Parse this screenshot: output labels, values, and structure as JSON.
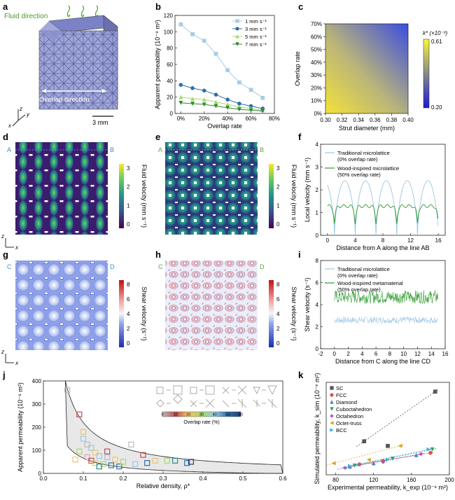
{
  "panel_labels": [
    "a",
    "b",
    "c",
    "d",
    "e",
    "f",
    "g",
    "h",
    "i",
    "j",
    "k"
  ],
  "panel_a": {
    "fluid_direction": "Fluid direction",
    "overlap_direction": "Overlap direction",
    "axis_z": "z",
    "axis_y": "y",
    "axis_x": "x",
    "scale_bar": "3 mm"
  },
  "panel_b_chart": {
    "type": "line",
    "x": [
      0,
      10,
      20,
      30,
      40,
      50,
      60,
      70
    ],
    "x_tick_labels": [
      "0%",
      "20%",
      "40%",
      "60%",
      "80%"
    ],
    "x_ticks": [
      0,
      20,
      40,
      60,
      80
    ],
    "y_ticks": [
      0,
      20,
      40,
      60,
      80,
      100,
      120
    ],
    "xlim": [
      -5,
      80
    ],
    "ylim": [
      0,
      120
    ],
    "xlabel": "Overlap rate",
    "ylabel": "Apparent permeability (10⁻⁹ m²)",
    "legend_position": "top-right",
    "series": [
      {
        "name": "1 mm s⁻¹",
        "color": "#a8cce4",
        "marker": "square",
        "values": [
          109,
          97,
          89,
          73,
          53,
          38,
          29,
          19
        ]
      },
      {
        "name": "3 mm s⁻¹",
        "color": "#2e6fa8",
        "marker": "circle",
        "values": [
          35,
          31,
          28,
          23,
          17,
          12,
          9,
          6
        ]
      },
      {
        "name": "5 mm s⁻¹",
        "color": "#a6d96a",
        "marker": "triangle-up",
        "values": [
          20,
          18,
          17,
          14,
          11,
          8,
          6,
          4
        ]
      },
      {
        "name": "7 mm s⁻¹",
        "color": "#2e8b2e",
        "marker": "triangle-down",
        "values": [
          13,
          12,
          11,
          9,
          7,
          5,
          4,
          3
        ]
      }
    ]
  },
  "panel_c_chart": {
    "type": "heatmap",
    "xlabel": "Strut diameter (mm)",
    "ylabel": "Overlap rate",
    "x_ticks": [
      "0.30",
      "0.32",
      "0.34",
      "0.36",
      "0.38",
      "0.40"
    ],
    "y_ticks": [
      "0%",
      "10%",
      "20%",
      "30%",
      "40%",
      "50%",
      "60%",
      "70%"
    ],
    "colorbar_title": "k* (×10⁻³)",
    "colorbar_max": "0.61",
    "colorbar_min": "0.20"
  },
  "panel_d": {
    "label_start": "A",
    "label_end": "B",
    "colorbar_title": "Fluid velocity (mm s⁻¹)",
    "colorbar_ticks": [
      "3",
      "2",
      "1",
      "0"
    ],
    "axis_z": "z",
    "axis_x": "x"
  },
  "panel_e": {
    "label_start": "A",
    "label_end": "B",
    "colorbar_title": "Fluid velocity (mm s⁻¹)",
    "colorbar_ticks": [
      "3",
      "2",
      "1",
      "0"
    ]
  },
  "panel_f_chart": {
    "type": "line",
    "xlabel": "Distance from A along the line AB",
    "ylabel": "Local velocity (mm s⁻¹)",
    "x_ticks": [
      0,
      4,
      8,
      12,
      16
    ],
    "y_ticks": [
      0,
      1,
      2,
      3,
      4
    ],
    "xlim": [
      -1,
      17
    ],
    "ylim": [
      0,
      4
    ],
    "legend_position": "top-left",
    "series": [
      {
        "name": "Traditional microlattice (0% overlap rate)",
        "color": "#9cc7e3",
        "peak": 2.4,
        "peaks_at": [
          1.0,
          4.0,
          7.0,
          10.0,
          13.0,
          16.0
        ]
      },
      {
        "name": "Wood-inspired microlattice (50% overlap rate)",
        "color": "#2e9a2e",
        "peak": 1.35,
        "peaks_at": [
          1.0,
          4.0,
          7.0,
          10.0,
          13.0,
          16.0
        ]
      }
    ],
    "legend_lines": [
      {
        "line1": "Traditional microlattice",
        "line2": "(0% overlap rate)"
      },
      {
        "line1": "Wood-inspired microlattice",
        "line2": "(50% overlap rate)"
      }
    ]
  },
  "panel_g": {
    "label_start": "C",
    "label_end": "D",
    "colorbar_title": "Shear velocity (s⁻¹)",
    "colorbar_ticks": [
      "8",
      "6",
      "4",
      "2",
      "0"
    ],
    "axis_z": "z",
    "axis_x": "x"
  },
  "panel_h": {
    "label_start": "C",
    "label_end": "D",
    "colorbar_title": "Shear velocity (s⁻¹)",
    "colorbar_ticks": [
      "8",
      "6",
      "4",
      "2",
      "0"
    ]
  },
  "panel_i_chart": {
    "type": "line",
    "xlabel": "Distance from C along the line CD",
    "ylabel": "Shear velocity (s⁻¹)",
    "x_ticks": [
      -2,
      0,
      2,
      4,
      6,
      8,
      10,
      12,
      14,
      16
    ],
    "y_ticks": [
      0,
      2,
      4,
      6,
      8
    ],
    "xlim": [
      -2,
      16
    ],
    "ylim": [
      0,
      8
    ],
    "legend_position": "top-left",
    "series": [
      {
        "name": "Traditional microlattice (0% overlap rate)",
        "color": "#9cc7e3",
        "mean": 2.6,
        "band": 0.3,
        "range": [
          0,
          15
        ]
      },
      {
        "name": "Wood-inspired metamaterial (50% overlap rate)",
        "color": "#2e9a2e",
        "mean": 4.7,
        "band": 0.6,
        "range": [
          0,
          15
        ]
      }
    ],
    "legend_lines": [
      {
        "line1": "Traditional microlattice",
        "line2": "(0% overlap rate)"
      },
      {
        "line1": "Wood-inspired metamaterial",
        "line2": "(50% overlap rate)"
      }
    ]
  },
  "panel_j_chart": {
    "type": "scatter",
    "xlabel": "Relative density, ρ*",
    "ylabel": "Apparent permeability (10⁻⁹ m²)",
    "x_ticks": [
      "0.0",
      "0.1",
      "0.2",
      "0.3",
      "0.4",
      "0.5",
      "0.6"
    ],
    "y_ticks": [
      "0",
      "100",
      "200",
      "300",
      "400"
    ],
    "xlim": [
      0,
      0.6
    ],
    "ylim": [
      0,
      400
    ],
    "colorbar_title": "Overlap rate (%)",
    "colorbar_ticks": [
      "0",
      "10",
      "20",
      "30",
      "40",
      "50",
      "60"
    ],
    "points": [
      {
        "x": 0.06,
        "y": 360,
        "c": "#bbbbbb"
      },
      {
        "x": 0.09,
        "y": 255,
        "c": "#c0504d"
      },
      {
        "x": 0.1,
        "y": 180,
        "c": "#f2c46a"
      },
      {
        "x": 0.1,
        "y": 150,
        "c": "#9cc7e3"
      },
      {
        "x": 0.11,
        "y": 125,
        "c": "#bbbbbb"
      },
      {
        "x": 0.12,
        "y": 110,
        "c": "#9cc7e3"
      },
      {
        "x": 0.13,
        "y": 90,
        "c": "#f2c46a"
      },
      {
        "x": 0.14,
        "y": 75,
        "c": "#9cc7e3"
      },
      {
        "x": 0.11,
        "y": 70,
        "c": "#e9a0c0"
      },
      {
        "x": 0.12,
        "y": 55,
        "c": "#c0504d"
      },
      {
        "x": 0.13,
        "y": 45,
        "c": "#f2c46a"
      },
      {
        "x": 0.15,
        "y": 40,
        "c": "#a6d96a"
      },
      {
        "x": 0.16,
        "y": 95,
        "c": "#c0504d"
      },
      {
        "x": 0.16,
        "y": 70,
        "c": "#9cc7e3"
      },
      {
        "x": 0.17,
        "y": 35,
        "c": "#2e6fa8"
      },
      {
        "x": 0.18,
        "y": 60,
        "c": "#f2c46a"
      },
      {
        "x": 0.19,
        "y": 30,
        "c": "#2e6fa8"
      },
      {
        "x": 0.2,
        "y": 50,
        "c": "#a6d96a"
      },
      {
        "x": 0.22,
        "y": 125,
        "c": "#bbbbbb"
      },
      {
        "x": 0.23,
        "y": 40,
        "c": "#9cc7e3"
      },
      {
        "x": 0.25,
        "y": 80,
        "c": "#c0504d"
      },
      {
        "x": 0.26,
        "y": 45,
        "c": "#2e6fa8"
      },
      {
        "x": 0.28,
        "y": 55,
        "c": "#f2c46a"
      },
      {
        "x": 0.31,
        "y": 55,
        "c": "#a6d96a"
      },
      {
        "x": 0.33,
        "y": 55,
        "c": "#2e8b8b"
      },
      {
        "x": 0.36,
        "y": 45,
        "c": "#2e6fa8"
      },
      {
        "x": 0.37,
        "y": 50,
        "c": "#1f3f7a"
      },
      {
        "x": 0.08,
        "y": 60,
        "c": "#f2c46a"
      },
      {
        "x": 0.09,
        "y": 95,
        "c": "#a6d96a"
      },
      {
        "x": 0.14,
        "y": 30,
        "c": "#2e8b8b"
      }
    ]
  },
  "panel_k_chart": {
    "type": "scatter",
    "xlabel": "Experimental permeability, k_exp (10⁻⁹ m²)",
    "ylabel": "Simulated permeability, k_sim (10⁻⁹ m²)",
    "x_ticks": [
      "80",
      "120",
      "160",
      "200"
    ],
    "xlim": [
      70,
      200
    ],
    "ylim": [
      0,
      400
    ],
    "legend_position": "top-left",
    "series": [
      {
        "name": "SC",
        "color": "#555555",
        "marker": "square",
        "points": [
          [
            110,
            145
          ],
          [
            135,
            125
          ],
          [
            185,
            360
          ]
        ]
      },
      {
        "name": "FCC",
        "color": "#e05050",
        "marker": "circle",
        "points": [
          [
            105,
            45
          ],
          [
            130,
            60
          ],
          [
            180,
            95
          ]
        ]
      },
      {
        "name": "Diamond",
        "color": "#5080d0",
        "marker": "triangle-up",
        "points": [
          [
            95,
            35
          ],
          [
            120,
            50
          ],
          [
            165,
            85
          ]
        ]
      },
      {
        "name": "Cuboctahedron",
        "color": "#2ea060",
        "marker": "triangle-down",
        "points": [
          [
            100,
            40
          ],
          [
            140,
            70
          ],
          [
            182,
            110
          ]
        ]
      },
      {
        "name": "Octahedron",
        "color": "#b050c0",
        "marker": "diamond",
        "points": [
          [
            90,
            30
          ],
          [
            130,
            55
          ],
          [
            170,
            90
          ]
        ]
      },
      {
        "name": "Octet-truss",
        "color": "#e0a020",
        "marker": "triangle-left",
        "points": [
          [
            78,
            50
          ],
          [
            115,
            65
          ],
          [
            148,
            125
          ]
        ]
      },
      {
        "name": "BCC",
        "color": "#40b0e0",
        "marker": "triangle-right",
        "points": [
          [
            95,
            38
          ],
          [
            135,
            65
          ],
          [
            178,
            110
          ]
        ]
      }
    ]
  }
}
